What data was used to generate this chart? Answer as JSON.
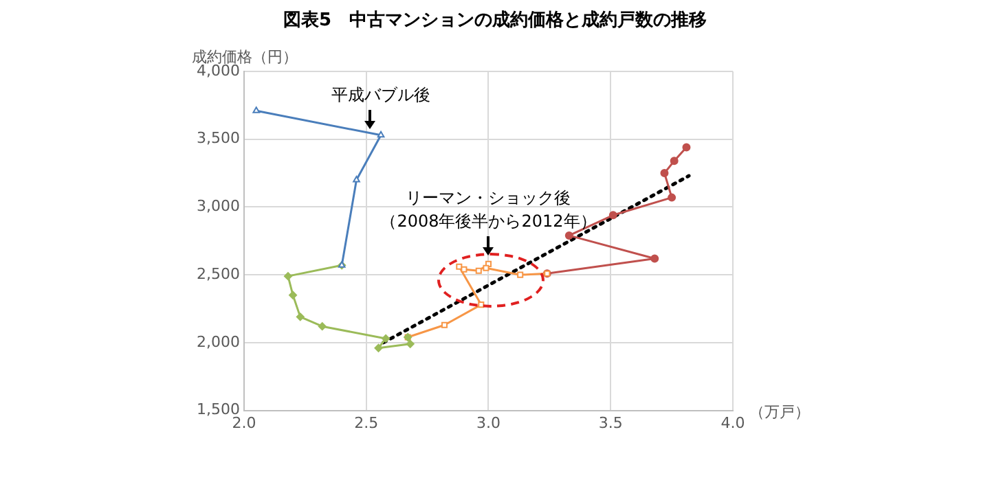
{
  "chart_data": {
    "type": "line",
    "title": "図表5　中古マンションの成約価格と成約戸数の推移",
    "xlabel": "（万戸）",
    "ylabel": "成約価格（円）",
    "xlim": [
      2.0,
      4.0
    ],
    "xticks": [
      {
        "value": 2,
        "label": "2.0"
      },
      2.5,
      {
        "value": 3,
        "label": "3.0"
      },
      3.5,
      {
        "value": 4,
        "label": "4.0"
      }
    ],
    "ylim": [
      1500,
      4000
    ],
    "yticks": [
      {
        "value": 1500,
        "label": "1,500"
      },
      {
        "value": 2000,
        "label": "2,000"
      },
      {
        "value": 2500,
        "label": "2,500"
      },
      {
        "value": 3000,
        "label": "3,000"
      },
      {
        "value": 3500,
        "label": "3,500"
      },
      {
        "value": 4000,
        "label": "4,000"
      }
    ],
    "grid": true,
    "legend": false,
    "line_style": "solid",
    "series": [
      {
        "color": "#4a7ebb",
        "marker": "triangle",
        "x": [
          2.05,
          2.56,
          2.46,
          2.4
        ],
        "values": [
          3710,
          3530,
          3200,
          2570
        ]
      },
      {
        "color": "#9bbb59",
        "marker": "diamond",
        "x": [
          2.4,
          2.18,
          2.2,
          2.23,
          2.32,
          2.58,
          2.55,
          2.68,
          2.67
        ],
        "values": [
          2570,
          2490,
          2350,
          2190,
          2120,
          2030,
          1960,
          1990,
          2040
        ]
      },
      {
        "color": "#f79646",
        "marker": "square",
        "x": [
          2.67,
          2.82,
          2.97,
          2.88,
          2.9,
          2.96,
          3.0,
          2.99,
          3.13,
          3.24
        ],
        "values": [
          2040,
          2130,
          2280,
          2560,
          2540,
          2530,
          2580,
          2550,
          2500,
          2510
        ]
      },
      {
        "color": "#c0504d",
        "marker": "circle",
        "x": [
          3.24,
          3.68,
          3.33,
          3.51,
          3.75,
          3.72,
          3.76,
          3.81
        ],
        "values": [
          2510,
          2620,
          2790,
          2940,
          3070,
          3250,
          3340,
          3440
        ]
      },
      {
        "color": "#000000",
        "line_style": "dotted",
        "marker": "none",
        "x": [
          2.57,
          3.82
        ],
        "values": [
          2000,
          3230
        ]
      }
    ],
    "annotations": [
      {
        "text": "平成バブル後",
        "x": 2.56,
        "y": 3530
      },
      "リーマン・ショック後",
      "（2008年後半から2012年）"
    ]
  }
}
